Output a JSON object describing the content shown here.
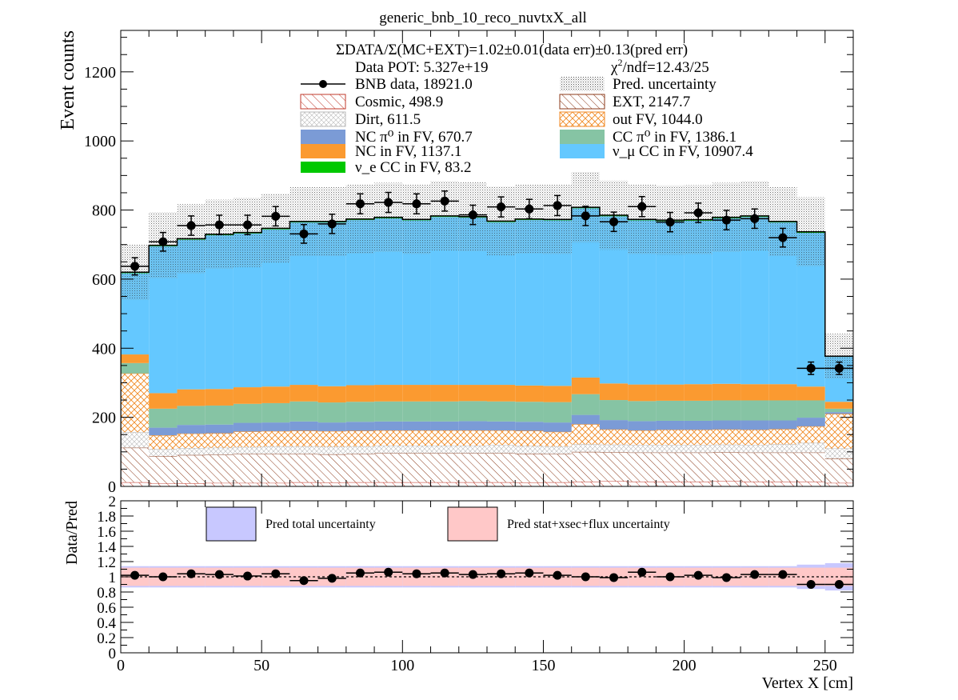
{
  "colors": {
    "cosmic": "#c0392b",
    "ext": "#8b3a1a",
    "dirt": "#b8b8b8",
    "outfv": "#f08a24",
    "ncpi0": "#7b9bd6",
    "ccpi0": "#86c4a4",
    "nc": "#fb9a30",
    "numu": "#64c8ff",
    "nue": "#00c800",
    "band_total": "#c8c8ff",
    "band_stat": "#ffc8c8"
  },
  "chart_data": [
    {
      "type": "stacked-histogram",
      "title": "generic_bnb_10_reco_nuvtxX_all",
      "xlabel": "",
      "ylabel": "Event counts",
      "xlim": [
        0,
        260
      ],
      "ylim": [
        0,
        1320
      ],
      "yticks": [
        0,
        200,
        400,
        600,
        800,
        1000,
        1200
      ],
      "bins": [
        0,
        10,
        20,
        30,
        40,
        50,
        60,
        70,
        80,
        90,
        100,
        110,
        120,
        130,
        140,
        150,
        160,
        170,
        180,
        190,
        200,
        210,
        220,
        230,
        240,
        250,
        260
      ],
      "summary_line": "ΣDATA/Σ(MC+EXT)=1.02±0.01(data err)±0.13(pred err)",
      "pot_text": "Data POT: 5.327e+19",
      "chi2_text": "χ²/ndf=12.43/25",
      "components": [
        {
          "key": "cosmic",
          "legend": "Cosmic, 498.9",
          "values": [
            12,
            8,
            9,
            10,
            10,
            10,
            12,
            11,
            12,
            12,
            12,
            12,
            12,
            12,
            11,
            12,
            14,
            15,
            14,
            14,
            14,
            15,
            14,
            14,
            14,
            10
          ]
        },
        {
          "key": "ext",
          "legend": "EXT, 2147.7",
          "values": [
            100,
            80,
            82,
            82,
            84,
            84,
            82,
            82,
            82,
            84,
            84,
            84,
            84,
            84,
            84,
            82,
            86,
            84,
            84,
            84,
            84,
            84,
            84,
            84,
            84,
            70
          ]
        },
        {
          "key": "dirt",
          "legend": "Dirt, 611.5",
          "values": [
            45,
            20,
            20,
            20,
            20,
            22,
            22,
            22,
            22,
            22,
            22,
            22,
            22,
            24,
            22,
            22,
            22,
            22,
            22,
            22,
            22,
            22,
            22,
            24,
            28,
            30
          ]
        },
        {
          "key": "outfv",
          "legend": "out FV, 1044.0",
          "values": [
            170,
            40,
            42,
            42,
            45,
            44,
            45,
            45,
            45,
            44,
            44,
            44,
            44,
            42,
            44,
            42,
            58,
            44,
            42,
            44,
            44,
            44,
            44,
            44,
            48,
            100
          ]
        },
        {
          "key": "ncpi0",
          "legend": "NC π⁰ in FV,  670.7",
          "values": [
            0,
            22,
            25,
            25,
            25,
            25,
            27,
            25,
            26,
            26,
            26,
            26,
            27,
            26,
            26,
            27,
            27,
            27,
            27,
            26,
            26,
            26,
            27,
            25,
            25,
            5
          ]
        },
        {
          "key": "ccpi0",
          "legend": "CC π⁰ in FV, 1386.1",
          "values": [
            30,
            55,
            55,
            55,
            55,
            56,
            58,
            58,
            58,
            58,
            58,
            58,
            58,
            58,
            58,
            59,
            60,
            58,
            58,
            58,
            58,
            58,
            58,
            58,
            50,
            10
          ]
        },
        {
          "key": "nc",
          "legend": "NC in FV, 1137.1",
          "values": [
            25,
            45,
            48,
            48,
            48,
            48,
            48,
            47,
            48,
            48,
            48,
            48,
            47,
            48,
            47,
            47,
            48,
            48,
            48,
            47,
            48,
            48,
            47,
            47,
            40,
            20
          ]
        },
        {
          "key": "numu",
          "legend": "ν_μ CC in FV, 10907.4",
          "values": [
            235,
            425,
            433,
            445,
            445,
            455,
            470,
            474,
            478,
            482,
            476,
            486,
            484,
            471,
            479,
            479,
            490,
            484,
            475,
            473,
            473,
            479,
            484,
            468,
            445,
            130
          ]
        },
        {
          "key": "nue",
          "legend": "ν_e CC in FV, 83.2",
          "values": [
            3,
            3,
            3,
            3,
            3,
            3,
            3,
            3,
            3,
            3,
            3,
            3,
            3,
            3,
            3,
            3,
            3,
            3,
            3,
            3,
            3,
            3,
            3,
            3,
            3,
            2
          ]
        }
      ],
      "uncertainty_halfwidth": [
        80,
        95,
        100,
        100,
        100,
        100,
        100,
        100,
        100,
        100,
        100,
        100,
        100,
        100,
        100,
        100,
        102,
        100,
        100,
        100,
        100,
        100,
        100,
        100,
        100,
        65
      ],
      "data": {
        "legend": "BNB data, 18921.0",
        "x": [
          5,
          15,
          25,
          35,
          45,
          55,
          65,
          75,
          85,
          95,
          105,
          115,
          125,
          135,
          145,
          155,
          165,
          175,
          185,
          195,
          205,
          215,
          225,
          235,
          245,
          255
        ],
        "y": [
          637,
          708,
          755,
          757,
          757,
          782,
          731,
          760,
          818,
          822,
          818,
          826,
          786,
          809,
          803,
          813,
          783,
          766,
          810,
          765,
          792,
          771,
          775,
          720,
          342,
          342
        ],
        "yerr": [
          25,
          27,
          28,
          28,
          28,
          28,
          27,
          28,
          29,
          29,
          29,
          29,
          28,
          29,
          28,
          29,
          28,
          28,
          29,
          28,
          28,
          28,
          28,
          27,
          18,
          18
        ]
      },
      "legend_extra": {
        "uncertainty": "Pred. uncertainty"
      }
    },
    {
      "type": "ratio",
      "ylabel": "Data/Pred",
      "xlabel": "Vertex X [cm]",
      "xlim": [
        0,
        260
      ],
      "ylim": [
        0,
        2
      ],
      "xticks": [
        0,
        50,
        100,
        150,
        200,
        250
      ],
      "yticks": [
        0,
        0.2,
        0.4,
        0.6,
        0.8,
        1,
        1.2,
        1.4,
        1.6,
        1.8,
        2
      ],
      "legend": [
        "Pred total uncertainty",
        "Pred stat+xsec+flux uncertainty"
      ],
      "x": [
        5,
        15,
        25,
        35,
        45,
        55,
        65,
        75,
        85,
        95,
        105,
        115,
        125,
        135,
        145,
        155,
        165,
        175,
        185,
        195,
        205,
        215,
        225,
        235,
        245,
        255
      ],
      "ratio": [
        1.02,
        1.0,
        1.04,
        1.03,
        1.01,
        1.04,
        0.95,
        0.98,
        1.05,
        1.06,
        1.04,
        1.05,
        1.03,
        1.04,
        1.05,
        1.02,
        1.0,
        0.99,
        1.06,
        1.0,
        1.02,
        0.99,
        1.03,
        1.03,
        0.9,
        0.9
      ],
      "ratio_err": [
        0.04,
        0.04,
        0.04,
        0.04,
        0.04,
        0.04,
        0.04,
        0.04,
        0.04,
        0.04,
        0.04,
        0.04,
        0.04,
        0.04,
        0.04,
        0.04,
        0.04,
        0.04,
        0.04,
        0.04,
        0.04,
        0.04,
        0.04,
        0.04,
        0.05,
        0.05
      ],
      "band_total": [
        0.14,
        0.14,
        0.14,
        0.14,
        0.14,
        0.14,
        0.14,
        0.14,
        0.14,
        0.14,
        0.14,
        0.14,
        0.14,
        0.14,
        0.14,
        0.14,
        0.14,
        0.14,
        0.14,
        0.14,
        0.14,
        0.14,
        0.14,
        0.14,
        0.16,
        0.18
      ],
      "band_stat": [
        0.12,
        0.12,
        0.12,
        0.12,
        0.12,
        0.12,
        0.12,
        0.12,
        0.12,
        0.12,
        0.12,
        0.12,
        0.12,
        0.12,
        0.12,
        0.12,
        0.12,
        0.12,
        0.12,
        0.12,
        0.12,
        0.12,
        0.12,
        0.12,
        0.12,
        0.12
      ]
    }
  ]
}
